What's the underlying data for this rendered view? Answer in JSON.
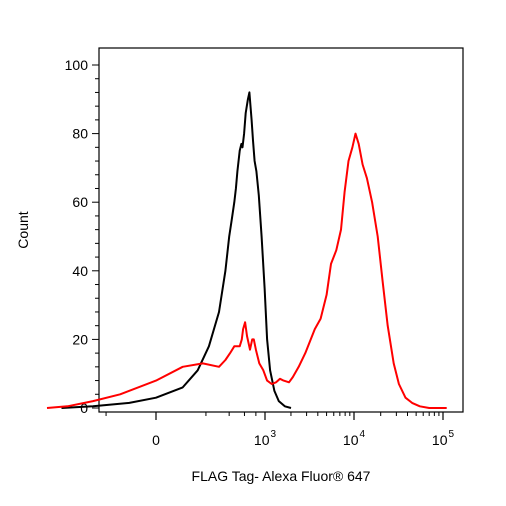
{
  "chart_data": {
    "type": "line",
    "title": "",
    "xlabel": "FLAG Tag- Alexa Fluor® 647",
    "ylabel": "Count",
    "x_scale": "biexponential",
    "xlim": [
      -1000,
      180000
    ],
    "ylim": [
      0,
      100
    ],
    "grid": false,
    "legend": "none",
    "y_ticks": [
      "0",
      "20",
      "40",
      "60",
      "80",
      "100"
    ],
    "x_ticks": [
      {
        "value": 0,
        "label": "0",
        "exp": ""
      },
      {
        "value": 1000,
        "label": "10",
        "exp": "3"
      },
      {
        "value": 10000,
        "label": "10",
        "exp": "4"
      },
      {
        "value": 100000,
        "label": "10",
        "exp": "5"
      }
    ],
    "series": [
      {
        "color": "#000000",
        "points": [
          [
            -700,
            0
          ],
          [
            -300,
            0.5
          ],
          [
            -80,
            1.5
          ],
          [
            0,
            3
          ],
          [
            80,
            6
          ],
          [
            150,
            11
          ],
          [
            220,
            18
          ],
          [
            300,
            28
          ],
          [
            360,
            40
          ],
          [
            400,
            50
          ],
          [
            430,
            55
          ],
          [
            460,
            60
          ],
          [
            480,
            64
          ],
          [
            500,
            69
          ],
          [
            530,
            75
          ],
          [
            555,
            77
          ],
          [
            570,
            76
          ],
          [
            595,
            80
          ],
          [
            620,
            86
          ],
          [
            655,
            90
          ],
          [
            680,
            92
          ],
          [
            700,
            88
          ],
          [
            720,
            84
          ],
          [
            745,
            78
          ],
          [
            775,
            72
          ],
          [
            810,
            69
          ],
          [
            860,
            62
          ],
          [
            920,
            50
          ],
          [
            990,
            35
          ],
          [
            1060,
            20
          ],
          [
            1150,
            11
          ],
          [
            1290,
            5
          ],
          [
            1450,
            2
          ],
          [
            1700,
            0.5
          ],
          [
            2000,
            0
          ]
        ]
      },
      {
        "color": "#ff0000",
        "points": [
          [
            -1000,
            0
          ],
          [
            -600,
            0.5
          ],
          [
            -300,
            2
          ],
          [
            -120,
            4
          ],
          [
            0,
            8
          ],
          [
            80,
            12
          ],
          [
            180,
            13
          ],
          [
            300,
            12
          ],
          [
            360,
            14
          ],
          [
            410,
            16
          ],
          [
            460,
            18
          ],
          [
            530,
            18
          ],
          [
            560,
            20
          ],
          [
            580,
            23
          ],
          [
            610,
            25
          ],
          [
            640,
            21
          ],
          [
            690,
            17
          ],
          [
            730,
            20
          ],
          [
            760,
            20
          ],
          [
            800,
            17
          ],
          [
            870,
            13
          ],
          [
            960,
            11
          ],
          [
            1060,
            8
          ],
          [
            1200,
            7
          ],
          [
            1350,
            7.5
          ],
          [
            1500,
            8.5
          ],
          [
            1650,
            8
          ],
          [
            1900,
            7.5
          ],
          [
            2100,
            9
          ],
          [
            2450,
            12
          ],
          [
            2900,
            16
          ],
          [
            3700,
            23
          ],
          [
            4300,
            26
          ],
          [
            5000,
            33
          ],
          [
            5600,
            42
          ],
          [
            6400,
            46
          ],
          [
            7200,
            52
          ],
          [
            7900,
            63
          ],
          [
            8700,
            72
          ],
          [
            9600,
            76
          ],
          [
            10400,
            80
          ],
          [
            11300,
            77
          ],
          [
            12500,
            71
          ],
          [
            14000,
            67
          ],
          [
            16000,
            60
          ],
          [
            18500,
            50
          ],
          [
            21000,
            37
          ],
          [
            24000,
            24
          ],
          [
            28000,
            13
          ],
          [
            32000,
            7
          ],
          [
            38000,
            3
          ],
          [
            45000,
            1.5
          ],
          [
            55000,
            0.5
          ],
          [
            70000,
            0
          ],
          [
            110000,
            0
          ]
        ]
      }
    ]
  }
}
